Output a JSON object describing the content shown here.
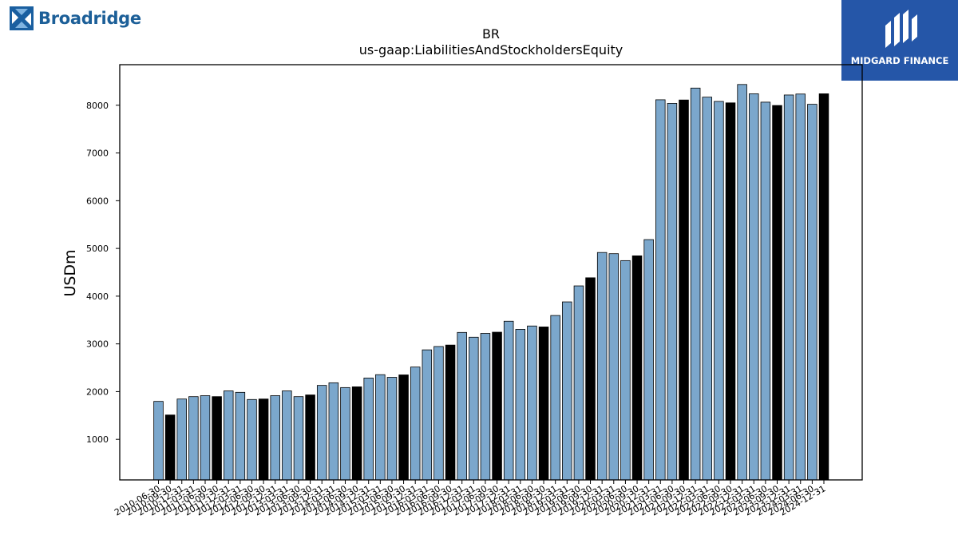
{
  "brand_left": {
    "name": "Broadridge",
    "color": "#1c5f98"
  },
  "brand_right": {
    "name": "MIDGARD FINANCE",
    "color": "#2556a8"
  },
  "chart_data": {
    "type": "bar",
    "title": "BR",
    "subtitle": "us-gaap:LiabilitiesAndStockholdersEquity",
    "xlabel": "",
    "ylabel": "USDm",
    "ylim": [
      150,
      8850
    ],
    "yticks": [
      1000,
      2000,
      3000,
      4000,
      5000,
      6000,
      7000,
      8000
    ],
    "grid": false,
    "bar_colors": {
      "quarter": "#7ba7cc",
      "fiscal_year_end": "#000000"
    },
    "categories": [
      "2010-06-30",
      "2010-09-30",
      "2010-12-31",
      "2011-03-31",
      "2011-06-30",
      "2011-09-30",
      "2011-12-31",
      "2012-03-31",
      "2012-06-30",
      "2012-09-30",
      "2012-12-31",
      "2013-03-31",
      "2013-06-30",
      "2013-09-30",
      "2013-12-31",
      "2014-03-31",
      "2014-06-30",
      "2014-09-30",
      "2014-12-31",
      "2015-03-31",
      "2015-06-30",
      "2015-09-30",
      "2015-12-31",
      "2016-03-31",
      "2016-06-30",
      "2016-09-30",
      "2016-12-31",
      "2017-03-31",
      "2017-06-30",
      "2017-09-30",
      "2017-12-31",
      "2018-03-31",
      "2018-06-30",
      "2018-09-30",
      "2018-12-31",
      "2019-03-31",
      "2019-06-30",
      "2019-09-30",
      "2019-12-31",
      "2020-03-31",
      "2020-06-30",
      "2020-09-30",
      "2020-12-31",
      "2021-03-31",
      "2021-06-30",
      "2021-09-30",
      "2021-12-31",
      "2022-03-31",
      "2022-06-30",
      "2022-09-30",
      "2022-12-31",
      "2023-03-31",
      "2023-06-30",
      "2023-09-30",
      "2023-12-31",
      "2024-03-31",
      "2024-06-30",
      "2024-12-31"
    ],
    "values": [
      1795,
      1510,
      1845,
      1895,
      1915,
      1895,
      2015,
      1985,
      1835,
      1845,
      1915,
      2015,
      1895,
      1930,
      2130,
      2185,
      2085,
      2100,
      2285,
      2355,
      2300,
      2350,
      2515,
      2875,
      2945,
      2975,
      3240,
      3140,
      3220,
      3245,
      3475,
      3305,
      3375,
      3355,
      3595,
      3880,
      4215,
      4385,
      4915,
      4890,
      4745,
      4845,
      5185,
      8115,
      8040,
      8110,
      8360,
      8170,
      8080,
      8050,
      8435,
      8240,
      8065,
      7995,
      8215,
      8235,
      8020,
      8240
    ],
    "fiscal_year_end": [
      false,
      true,
      false,
      false,
      false,
      true,
      false,
      false,
      false,
      true,
      false,
      false,
      false,
      true,
      false,
      false,
      false,
      true,
      false,
      false,
      false,
      true,
      false,
      false,
      false,
      true,
      false,
      false,
      false,
      true,
      false,
      false,
      false,
      true,
      false,
      false,
      false,
      true,
      false,
      false,
      false,
      true,
      false,
      false,
      false,
      true,
      false,
      false,
      false,
      true,
      false,
      false,
      false,
      true,
      false,
      false,
      false,
      true
    ]
  }
}
